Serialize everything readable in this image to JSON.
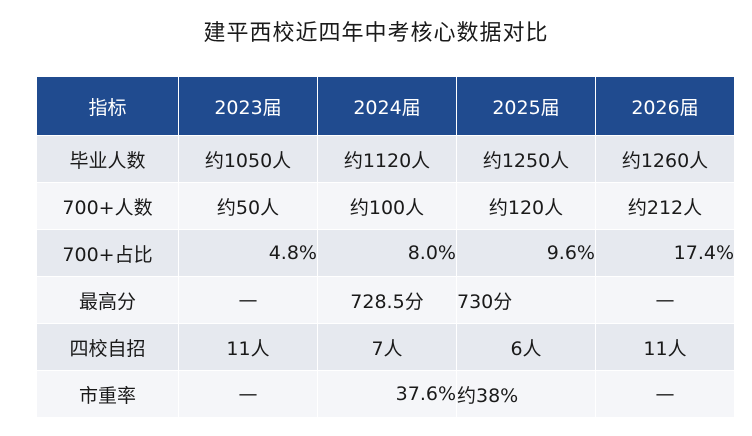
{
  "title": "建平西校近四年中考核心数据对比",
  "table": {
    "headers": [
      "指标",
      "2023届",
      "2024届",
      "2025届",
      "2026届"
    ],
    "rows": [
      {
        "label": "毕业人数",
        "cells": [
          "约1050人",
          "约1120人",
          "约1250人",
          "约1260人"
        ]
      },
      {
        "label": "700+人数",
        "cells": [
          "约50人",
          "约100人",
          "约120人",
          "约212人"
        ]
      },
      {
        "label": "700+占比",
        "cells": [
          "4.8%",
          "8.0%",
          "9.6%",
          "17.4%"
        ]
      },
      {
        "label": "最高分",
        "cells": [
          "—",
          "728.5分",
          "730分",
          "—"
        ]
      },
      {
        "label": "四校自招",
        "cells": [
          "11人",
          "7人",
          "6人",
          "11人"
        ]
      },
      {
        "label": "市重率",
        "cells": [
          "—",
          "37.6%",
          "约38%",
          "—"
        ]
      }
    ]
  },
  "colors": {
    "header_bg": "#204b8f",
    "row_odd": "#e6e9ef",
    "row_even": "#f5f6f9"
  }
}
